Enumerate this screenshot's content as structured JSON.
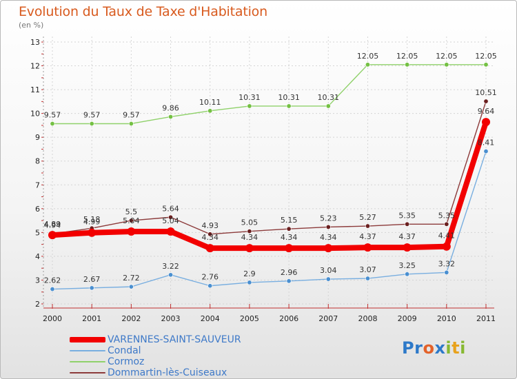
{
  "header": {
    "title": "Evolution du Taux de Taxe d'Habitation",
    "subtitle": "(en %)"
  },
  "logo": {
    "text": "Proxiti",
    "letters": [
      {
        "ch": "P",
        "color": "#2d79c9"
      },
      {
        "ch": "r",
        "color": "#2d79c9"
      },
      {
        "ch": "o",
        "color": "#e3622a"
      },
      {
        "ch": "x",
        "color": "#2d79c9"
      },
      {
        "ch": "i",
        "color": "#87b832"
      },
      {
        "ch": "t",
        "color": "#e8a21d"
      },
      {
        "ch": "i",
        "color": "#87b832"
      }
    ]
  },
  "chart_data": {
    "type": "line",
    "x": [
      "2000",
      "2001",
      "2002",
      "2003",
      "2004",
      "2005",
      "2006",
      "2007",
      "2008",
      "2009",
      "2010",
      "2011"
    ],
    "ylim": [
      2,
      13
    ],
    "yticks": [
      2,
      3,
      4,
      5,
      6,
      7,
      8,
      9,
      10,
      11,
      12,
      13
    ],
    "grid": true,
    "legend_position": "bottom-left",
    "series": [
      {
        "name": "Cormoz",
        "color": "#8fd16a",
        "point_color": "#74c043",
        "values": [
          9.57,
          9.57,
          9.57,
          9.86,
          10.11,
          10.31,
          10.31,
          10.31,
          12.05,
          12.05,
          12.05,
          12.05
        ],
        "labels": [
          "9.57",
          "9.57",
          "9.57",
          "9.86",
          "10.11",
          "10.31",
          "10.31",
          "10.31",
          "12.05",
          "12.05",
          "12.05",
          "12.05"
        ]
      },
      {
        "name": "Condal",
        "color": "#78aee0",
        "point_color": "#4a8fd0",
        "values": [
          2.62,
          2.67,
          2.72,
          3.22,
          2.76,
          2.9,
          2.96,
          3.04,
          3.07,
          3.25,
          3.32,
          8.41
        ],
        "labels": [
          "2.62",
          "2.67",
          "2.72",
          "3.22",
          "2.76",
          "2.9",
          "2.96",
          "3.04",
          "3.07",
          "3.25",
          "3.32",
          "8.41"
        ]
      },
      {
        "name": "Dommartin-lès-Cuiseaux",
        "color": "#8c3a3a",
        "point_color": "#6a1f1f",
        "values": [
          4.94,
          5.18,
          5.5,
          5.64,
          4.93,
          5.05,
          5.15,
          5.23,
          5.27,
          5.35,
          5.35,
          10.51
        ],
        "labels": [
          "4.94",
          "5.18",
          "5.5",
          "5.64",
          "4.93",
          "5.05",
          "5.15",
          "5.23",
          "5.27",
          "5.35",
          "5.35",
          "10.51"
        ]
      },
      {
        "name": "VARENNES-SAINT-SAUVEUR",
        "color": "#f20000",
        "point_color": "#f20000",
        "values": [
          4.89,
          4.99,
          5.04,
          5.04,
          4.34,
          4.34,
          4.34,
          4.34,
          4.37,
          4.37,
          4.41,
          9.64
        ],
        "labels": [
          "4.89",
          "4.99",
          "5.04",
          "5.04",
          "4.34",
          "4.34",
          "4.34",
          "4.34",
          "4.37",
          "4.37",
          "4.41",
          "9.64"
        ]
      }
    ],
    "legend_order": [
      3,
      1,
      0,
      2
    ]
  }
}
